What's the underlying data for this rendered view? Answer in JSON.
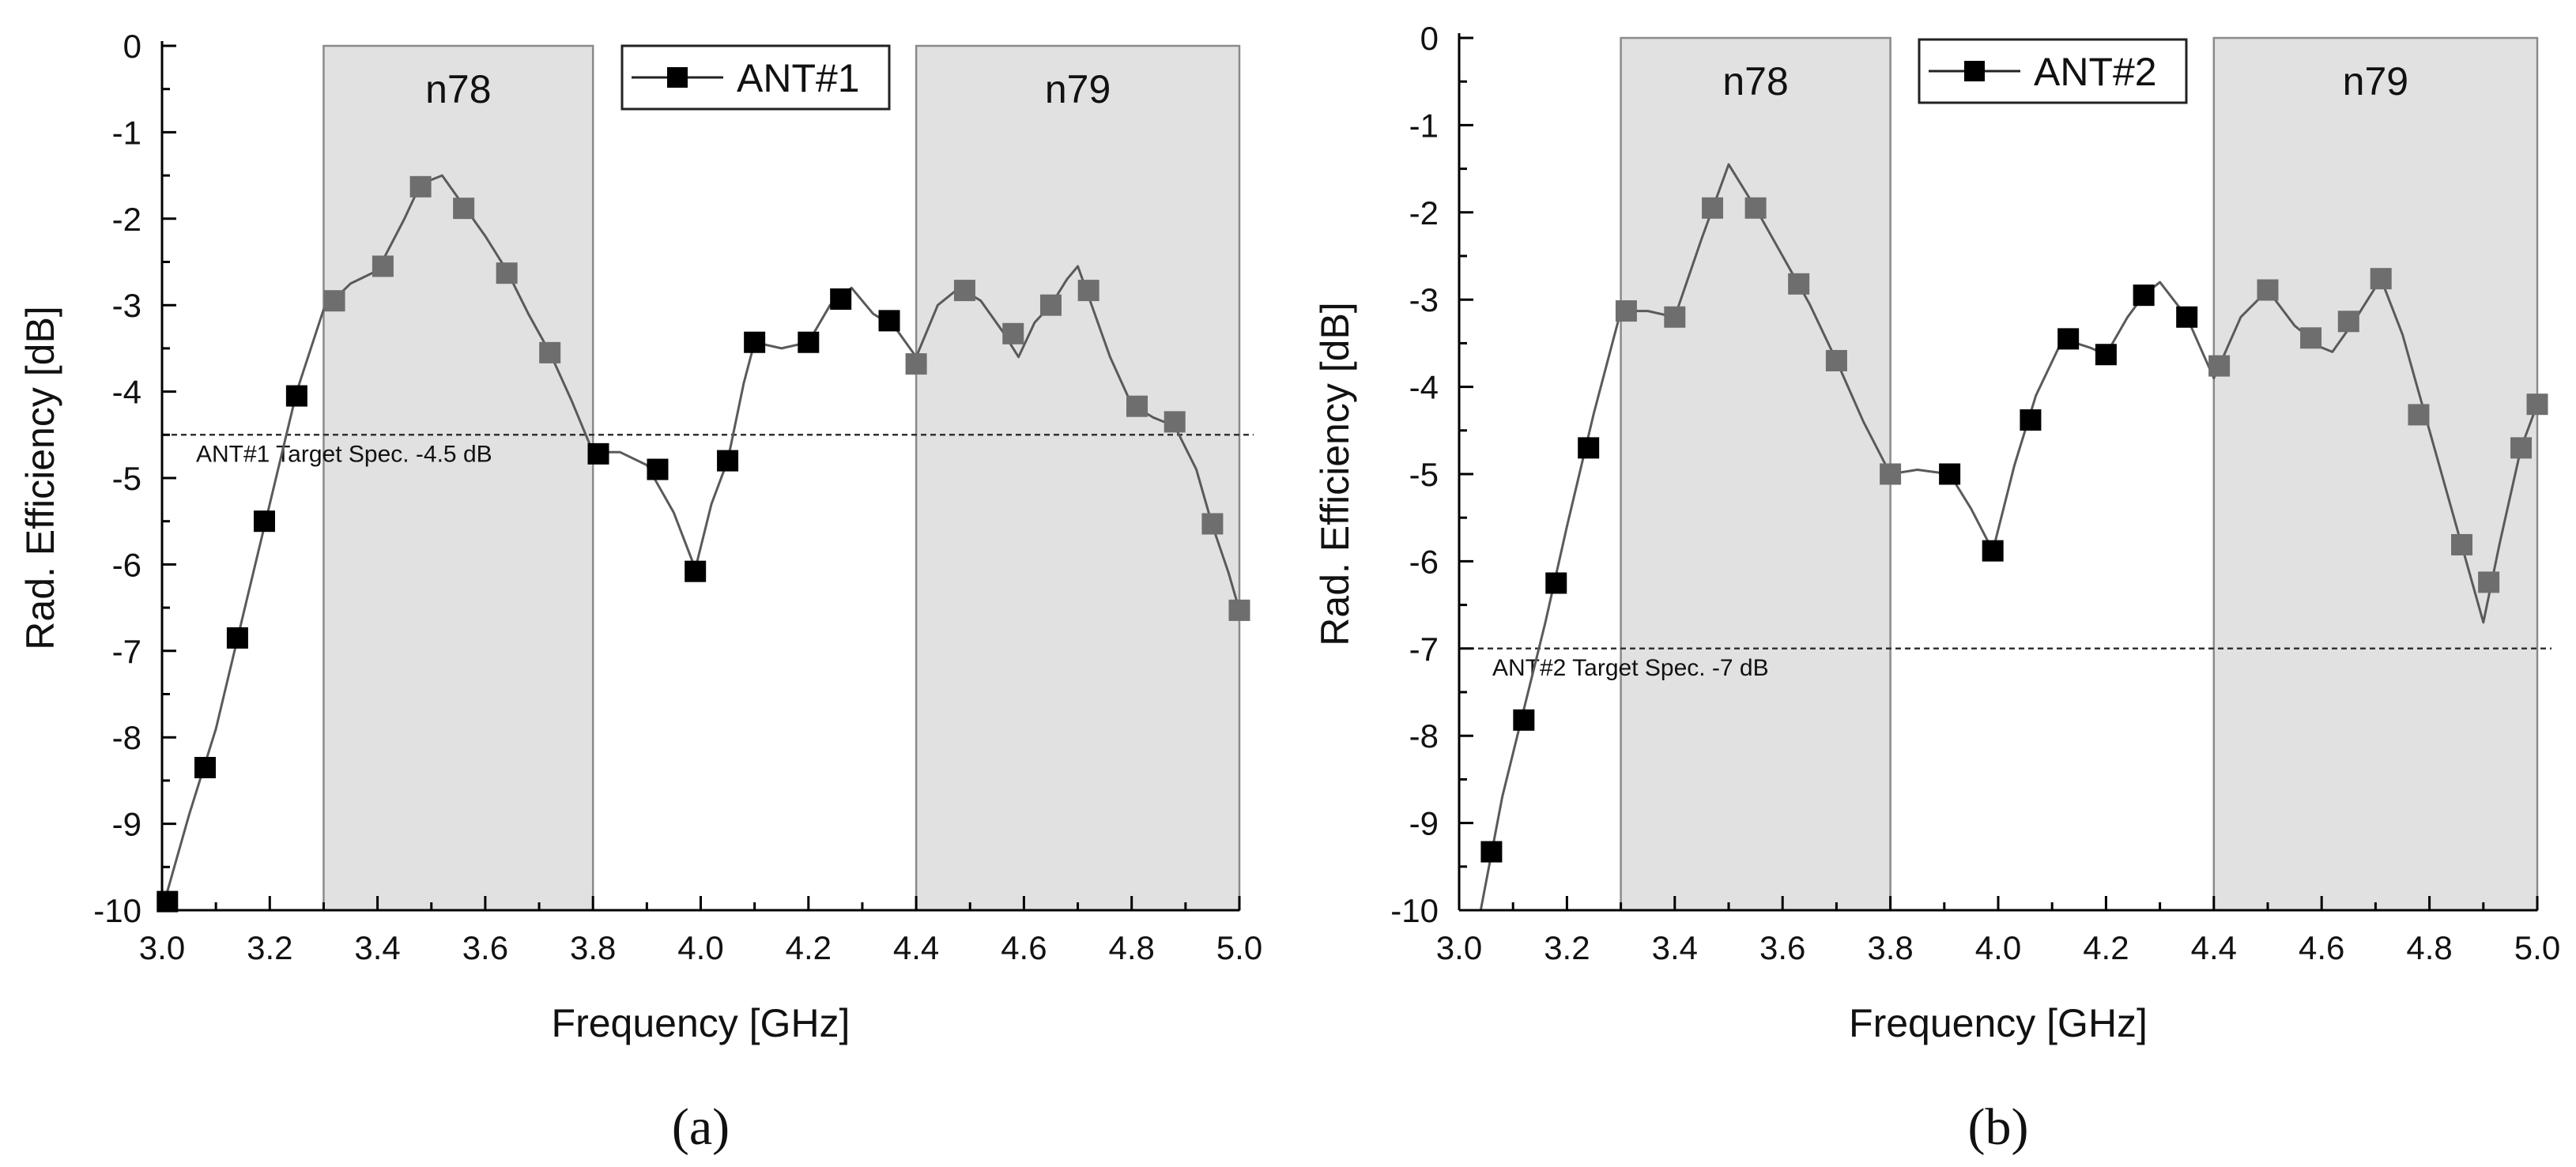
{
  "chart_data": [
    {
      "type": "line",
      "panel_label": "(a)",
      "xlabel": "Frequency [GHz]",
      "ylabel": "Rad. Efficiency [dB]",
      "xlim": [
        3.0,
        5.0
      ],
      "ylim": [
        -10,
        0
      ],
      "xticks": [
        3.0,
        3.2,
        3.4,
        3.6,
        3.8,
        4.0,
        4.2,
        4.4,
        4.6,
        4.8,
        5.0
      ],
      "xtick_labels": [
        "3.0",
        "3.2",
        "3.4",
        "3.6",
        "3.8",
        "4.0",
        "4.2",
        "4.4",
        "4.6",
        "4.8",
        "5.0"
      ],
      "yticks": [
        0,
        -1,
        -2,
        -3,
        -4,
        -5,
        -6,
        -7,
        -8,
        -9,
        -10
      ],
      "ytick_labels": [
        "0",
        "-1",
        "-2",
        "-3",
        "-4",
        "-5",
        "-6",
        "-7",
        "-8",
        "-9",
        "-10"
      ],
      "bands": [
        {
          "label": "n78",
          "x0": 3.3,
          "x1": 3.8
        },
        {
          "label": "n79",
          "x0": 4.4,
          "x1": 5.0
        }
      ],
      "spec_line": {
        "value": -4.5,
        "label": "ANT#1 Target Spec. -4.5 dB"
      },
      "legend": {
        "label": "ANT#1",
        "position": "top-center"
      },
      "series": [
        {
          "name": "ANT#1",
          "x": [
            3.01,
            3.08,
            3.14,
            3.19,
            3.25,
            3.32,
            3.41,
            3.48,
            3.56,
            3.64,
            3.72,
            3.81,
            3.92,
            3.99,
            4.05,
            4.1,
            4.2,
            4.26,
            4.35,
            4.4,
            4.49,
            4.58,
            4.65,
            4.72,
            4.81,
            4.88,
            4.95,
            5.0
          ],
          "y": [
            -9.9,
            -8.35,
            -6.85,
            -5.5,
            -4.05,
            -2.95,
            -2.55,
            -1.63,
            -1.88,
            -2.63,
            -3.55,
            -4.72,
            -4.9,
            -6.08,
            -4.8,
            -3.43,
            -3.43,
            -2.93,
            -3.18,
            -3.68,
            -2.83,
            -3.33,
            -3.0,
            -2.83,
            -4.17,
            -4.35,
            -5.53,
            -6.53
          ]
        }
      ],
      "curve": {
        "x": [
          3.0,
          3.05,
          3.1,
          3.15,
          3.2,
          3.25,
          3.3,
          3.35,
          3.4,
          3.45,
          3.48,
          3.52,
          3.56,
          3.6,
          3.64,
          3.68,
          3.72,
          3.76,
          3.8,
          3.85,
          3.9,
          3.95,
          3.99,
          4.02,
          4.05,
          4.08,
          4.1,
          4.15,
          4.2,
          4.24,
          4.28,
          4.32,
          4.36,
          4.4,
          4.44,
          4.48,
          4.52,
          4.56,
          4.59,
          4.62,
          4.65,
          4.68,
          4.7,
          4.72,
          4.76,
          4.8,
          4.84,
          4.88,
          4.92,
          4.95,
          4.98,
          5.0
        ],
        "y": [
          -10.0,
          -8.9,
          -7.9,
          -6.6,
          -5.3,
          -4.0,
          -3.05,
          -2.75,
          -2.6,
          -2.0,
          -1.6,
          -1.5,
          -1.85,
          -2.2,
          -2.6,
          -3.1,
          -3.55,
          -4.1,
          -4.7,
          -4.7,
          -4.85,
          -5.4,
          -6.05,
          -5.3,
          -4.8,
          -3.9,
          -3.43,
          -3.5,
          -3.43,
          -3.0,
          -2.8,
          -3.1,
          -3.25,
          -3.6,
          -3.0,
          -2.8,
          -2.95,
          -3.3,
          -3.6,
          -3.2,
          -3.0,
          -2.7,
          -2.55,
          -2.9,
          -3.6,
          -4.15,
          -4.3,
          -4.4,
          -4.9,
          -5.55,
          -6.1,
          -6.53
        ]
      }
    },
    {
      "type": "line",
      "panel_label": "(b)",
      "xlabel": "Frequency [GHz]",
      "ylabel": "Rad. Efficiency [dB]",
      "xlim": [
        3.0,
        5.0
      ],
      "ylim": [
        -10,
        0
      ],
      "xticks": [
        3.0,
        3.2,
        3.4,
        3.6,
        3.8,
        4.0,
        4.2,
        4.4,
        4.6,
        4.8,
        5.0
      ],
      "xtick_labels": [
        "3.0",
        "3.2",
        "3.4",
        "3.6",
        "3.8",
        "4.0",
        "4.2",
        "4.4",
        "4.6",
        "4.8",
        "5.0"
      ],
      "yticks": [
        0,
        -1,
        -2,
        -3,
        -4,
        -5,
        -6,
        -7,
        -8,
        -9,
        -10
      ],
      "ytick_labels": [
        "0",
        "-1",
        "-2",
        "-3",
        "-4",
        "-5",
        "-6",
        "-7",
        "-8",
        "-9",
        "-10"
      ],
      "bands": [
        {
          "label": "n78",
          "x0": 3.3,
          "x1": 3.8
        },
        {
          "label": "n79",
          "x0": 4.4,
          "x1": 5.0
        }
      ],
      "spec_line": {
        "value": -7,
        "label": "ANT#2 Target Spec. -7 dB"
      },
      "legend": {
        "label": "ANT#2",
        "position": "top-center"
      },
      "series": [
        {
          "name": "ANT#2",
          "x": [
            3.06,
            3.12,
            3.18,
            3.24,
            3.31,
            3.4,
            3.47,
            3.55,
            3.63,
            3.7,
            3.8,
            3.91,
            3.99,
            4.06,
            4.13,
            4.2,
            4.27,
            4.35,
            4.41,
            4.5,
            4.58,
            4.65,
            4.71,
            4.78,
            4.86,
            4.91,
            4.97,
            5.0
          ],
          "y": [
            -9.33,
            -7.82,
            -6.25,
            -4.7,
            -3.13,
            -3.2,
            -1.95,
            -1.95,
            -2.82,
            -3.7,
            -5.0,
            -5.0,
            -5.88,
            -4.38,
            -3.45,
            -3.63,
            -2.95,
            -3.2,
            -3.76,
            -2.89,
            -3.44,
            -3.25,
            -2.76,
            -4.32,
            -5.81,
            -6.24,
            -4.7,
            -4.2
          ]
        }
      ],
      "curve": {
        "x": [
          3.04,
          3.08,
          3.12,
          3.16,
          3.2,
          3.25,
          3.3,
          3.35,
          3.4,
          3.45,
          3.5,
          3.55,
          3.6,
          3.65,
          3.7,
          3.75,
          3.8,
          3.85,
          3.91,
          3.95,
          3.99,
          4.03,
          4.07,
          4.12,
          4.17,
          4.2,
          4.24,
          4.27,
          4.3,
          4.35,
          4.4,
          4.45,
          4.5,
          4.55,
          4.6,
          4.62,
          4.66,
          4.71,
          4.75,
          4.8,
          4.85,
          4.9,
          4.93,
          4.97,
          5.0
        ],
        "y": [
          -10.0,
          -8.7,
          -7.7,
          -6.7,
          -5.6,
          -4.3,
          -3.13,
          -3.13,
          -3.2,
          -2.3,
          -1.45,
          -1.95,
          -2.5,
          -3.05,
          -3.7,
          -4.4,
          -5.0,
          -4.95,
          -5.0,
          -5.4,
          -5.88,
          -4.9,
          -4.1,
          -3.45,
          -3.55,
          -3.63,
          -3.2,
          -2.95,
          -2.8,
          -3.2,
          -3.9,
          -3.2,
          -2.89,
          -3.3,
          -3.55,
          -3.6,
          -3.25,
          -2.76,
          -3.4,
          -4.5,
          -5.6,
          -6.7,
          -5.8,
          -4.7,
          -4.2
        ]
      }
    }
  ],
  "colors": {
    "band_fill": "#e1e1e1",
    "band_edge": "#8a8a8a",
    "marker_outside": "#000000",
    "marker_inside": "#6e6e6e",
    "curve": "#5a5a5a",
    "axis": "#000000"
  }
}
